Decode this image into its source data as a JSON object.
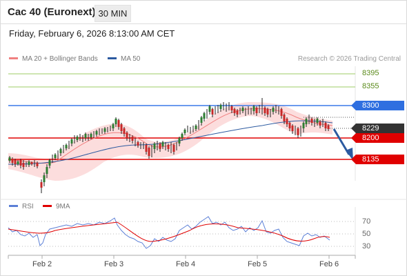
{
  "header": {
    "title": "Cac 40 (Euronext)",
    "timeframe": "30 MIN"
  },
  "datetime": "Friday, February 6, 2026 8:13:00 AM CET",
  "legend": {
    "ma20": "MA 20 + Bollinger Bands",
    "ma50": "MA 50",
    "ma20_color": "#f08080",
    "ma50_color": "#2c5aa0"
  },
  "research": "Research © 2026 Trading Central",
  "levels": {
    "r2": "8395",
    "r1": "8355",
    "pivot": "8300",
    "last": "8229",
    "s1": "8200",
    "s2": "8135"
  },
  "colors": {
    "pivot": "#2f6fe0",
    "support": "#e00000",
    "last": "#333333",
    "resistance_line": "#9ccc65"
  },
  "rsi": {
    "label": "RSI",
    "ma_label": "9MA",
    "rsi_color": "#5b7fd6",
    "ma_color": "#e00000",
    "ticks": [
      "70",
      "50",
      "30"
    ]
  },
  "xaxis": [
    "Feb 2",
    "Feb 3",
    "Feb 4",
    "Feb 5",
    "Feb 6"
  ],
  "chart_data": {
    "type": "candlestick",
    "ylim": [
      8100,
      8420
    ],
    "levels": [
      8395,
      8355,
      8300,
      8229,
      8200,
      8135
    ],
    "x_labels": [
      "Feb 2",
      "Feb 3",
      "Feb 4",
      "Feb 5",
      "Feb 6"
    ]
  }
}
